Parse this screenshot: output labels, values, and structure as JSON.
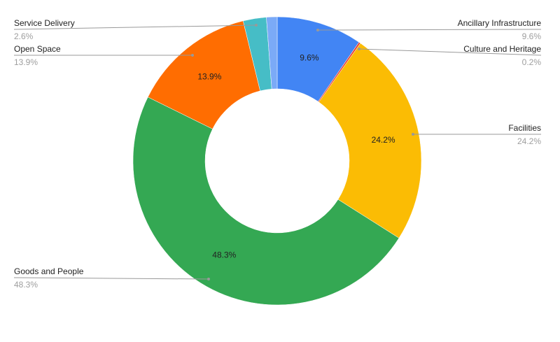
{
  "chart_data": {
    "type": "pie",
    "donut": true,
    "title": "",
    "slices": [
      {
        "name": "Ancillary Infrastructure",
        "value": 9.6,
        "label": "9.6%",
        "color": "#4285f4",
        "show_inner_label": true,
        "legend_side": "right"
      },
      {
        "name": "Culture and Heritage",
        "value": 0.2,
        "label": "0.2%",
        "color": "#ea4335",
        "show_inner_label": false,
        "legend_side": "right"
      },
      {
        "name": "Facilities",
        "value": 24.2,
        "label": "24.2%",
        "color": "#fbbc04",
        "show_inner_label": true,
        "legend_side": "right"
      },
      {
        "name": "Goods and People",
        "value": 48.3,
        "label": "48.3%",
        "color": "#34a853",
        "show_inner_label": true,
        "legend_side": "left"
      },
      {
        "name": "Open Space",
        "value": 13.9,
        "label": "13.9%",
        "color": "#ff6d01",
        "show_inner_label": true,
        "legend_side": "left"
      },
      {
        "name": "Service Delivery",
        "value": 2.6,
        "label": "2.6%",
        "color": "#46bdc6",
        "show_inner_label": false,
        "legend_side": "left"
      },
      {
        "name": "",
        "value": 1.2,
        "label": "",
        "color": "#7baaf7",
        "show_inner_label": false,
        "legend_side": ""
      }
    ]
  }
}
